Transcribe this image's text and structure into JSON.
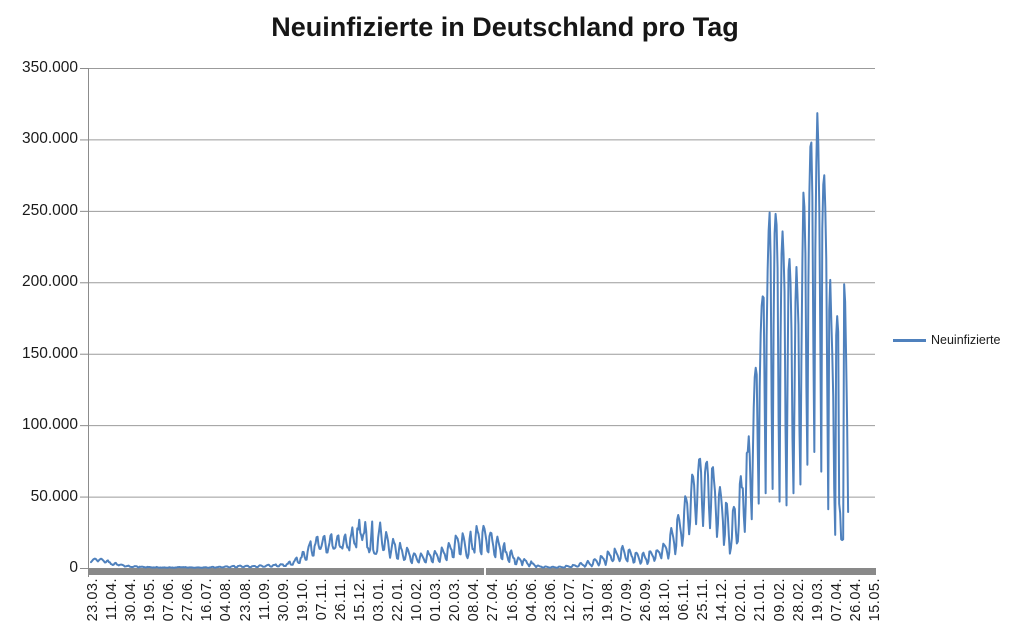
{
  "title": "Neuinfizierte in Deutschland pro Tag",
  "legend": {
    "label": "Neuinfizierte"
  },
  "colors": {
    "series": "#4F81BD",
    "gridline": "#9B9B9B",
    "axis_line": "#8C8C8C",
    "axis_bar": "#898989",
    "label_text": "#1A1A1A",
    "title_text": "#161616",
    "background": "#FFFFFF"
  },
  "chart_data": {
    "type": "line",
    "title": "Neuinfizierte in Deutschland pro Tag",
    "grid": "horizontal",
    "legend_position": "right",
    "ylim": [
      0,
      350000
    ],
    "y_tick_step": 50000,
    "y_tick_labels": [
      "350.000",
      "300.000",
      "250.000",
      "200.000",
      "150.000",
      "100.000",
      "50.000",
      "0"
    ],
    "x_tick_labels": [
      "23.03.",
      "11.04.",
      "30.04.",
      "19.05.",
      "07.06.",
      "27.06.",
      "16.07.",
      "04.08.",
      "23.08.",
      "11.09.",
      "30.09.",
      "19.10.",
      "07.11.",
      "26.11.",
      "15.12.",
      "03.01.",
      "22.01.",
      "10.02.",
      "01.03.",
      "20.03.",
      "08.04.",
      "27.04.",
      "16.05.",
      "04.06.",
      "23.06.",
      "12.07.",
      "31.07.",
      "19.08.",
      "07.09.",
      "26.09.",
      "18.10.",
      "06.11.",
      "25.11.",
      "14.12.",
      "02.01.",
      "21.01.",
      "09.02.",
      "28.02.",
      "19.03.",
      "07.04.",
      "26.04.",
      "15.05."
    ],
    "series": [
      {
        "name": "Neuinfizierte",
        "frequency": "daily",
        "start_date": "23.03.2020",
        "end_date": "24.04.2022",
        "values": [
          4100,
          4900,
          5800,
          6300,
          6600,
          6200,
          5300,
          4615,
          5453,
          6064,
          6500,
          6174,
          5453,
          4751,
          3834,
          4003,
          4974,
          5323,
          4133,
          3990,
          2821,
          2537,
          2082,
          2486,
          3380,
          3609,
          2458,
          2203,
          1775,
          2237,
          2352,
          2337,
          2055,
          1737,
          1018,
          1144,
          1304,
          1478,
          1639,
          945,
          793,
          679,
          685,
          947,
          1284,
          1209,
          1251,
          667,
          357,
          933,
          798,
          933,
          913,
          620,
          583,
          342,
          513,
          797,
          639,
          741,
          460,
          431,
          289,
          432,
          362,
          353,
          741,
          507,
          252,
          286,
          333,
          222,
          343,
          394,
          407,
          301,
          247,
          214,
          350,
          555,
          348,
          258,
          348,
          192,
          192,
          378,
          345,
          580,
          601,
          687,
          537,
          538,
          503,
          630,
          477,
          687,
          422,
          256,
          262,
          466,
          447,
          451,
          340,
          239,
          219,
          219,
          390,
          397,
          442,
          395,
          250,
          159,
          159,
          412,
          444,
          534,
          529,
          240,
          202,
          249,
          454,
          569,
          815,
          781,
          305,
          240,
          340,
          633,
          684,
          870,
          902,
          541,
          384,
          509,
          741,
          1045,
          1147,
          1122,
          748,
          555,
          436,
          966,
          1226,
          1445,
          1449,
          625,
          561,
          561,
          1390,
          1510,
          1707,
          1427,
          782,
          785,
          711,
          1278,
          1507,
          1571,
          1453,
          818,
          610,
          610,
          1218,
          1311,
          1406,
          1378,
          799,
          675,
          675,
          1499,
          1892,
          1790,
          1484,
          948,
          920,
          927,
          1407,
          1901,
          2194,
          2297,
          1345,
          922,
          922,
          1821,
          2143,
          2153,
          2507,
          1411,
          1111,
          1111,
          2089,
          2673,
          2503,
          2563,
          1450,
          1382,
          1382,
          2639,
          2828,
          4058,
          4516,
          2467,
          2279,
          2279,
          4122,
          5132,
          6638,
          7334,
          4325,
          3483,
          3483,
          6868,
          7595,
          11287,
          11242,
          7830,
          5732,
          5732,
          11409,
          14964,
          16774,
          18681,
          12097,
          8685,
          8685,
          15352,
          17214,
          21506,
          21866,
          16017,
          13363,
          13363,
          15332,
          18487,
          21866,
          22461,
          16947,
          10824,
          10824,
          14419,
          17561,
          22609,
          23648,
          15741,
          13554,
          13554,
          14361,
          18633,
          22268,
          22806,
          15871,
          14611,
          14611,
          13604,
          17270,
          22046,
          23449,
          17767,
          14355,
          14355,
          12332,
          20815,
          23679,
          28438,
          21816,
          17272,
          16362,
          14432,
          27728,
          26923,
          33777,
          24740,
          22771,
          19528,
          23318,
          24740,
          32195,
          25533,
          14455,
          13755,
          10976,
          12892,
          22459,
          32552,
          12690,
          10315,
          9847,
          9847,
          11897,
          21237,
          26391,
          31849,
          24694,
          16946,
          12497,
          12802,
          19600,
          25164,
          22368,
          18678,
          12257,
          7141,
          11369,
          15974,
          20398,
          17862,
          16417,
          11192,
          6729,
          6408,
          13202,
          17553,
          14022,
          12321,
          8616,
          5608,
          6114,
          9705,
          14211,
          12908,
          10485,
          8305,
          4535,
          3379,
          8072,
          10237,
          9860,
          8354,
          6114,
          4426,
          3856,
          7556,
          10207,
          9113,
          7676,
          6235,
          4369,
          3883,
          8007,
          11869,
          9997,
          9164,
          7890,
          4732,
          3943,
          9019,
          11912,
          10580,
          9557,
          7745,
          5011,
          4252,
          9146,
          14356,
          12834,
          10790,
          9781,
          6604,
          5480,
          13435,
          17504,
          16033,
          13733,
          12674,
          7709,
          7485,
          15813,
          22657,
          21573,
          20472,
          17176,
          9872,
          9549,
          17051,
          24300,
          21888,
          18129,
          13245,
          8497,
          6885,
          9677,
          20407,
          25464,
          18129,
          13245,
          13245,
          10810,
          21693,
          29426,
          25831,
          23804,
          19185,
          11437,
          9609,
          24884,
          29518,
          27543,
          23392,
          18773,
          11907,
          10976,
          22231,
          24736,
          24329,
          18935,
          14941,
          9160,
          7534,
          18034,
          21953,
          18485,
          15685,
          12656,
          6922,
          6125,
          14909,
          17419,
          11336,
          11040,
          8500,
          5412,
          4209,
          11040,
          12298,
          9354,
          7082,
          6714,
          2682,
          2626,
          5426,
          7380,
          6714,
          5827,
          4640,
          1978,
          4917,
          6261,
          5426,
          4917,
          3254,
          2440,
          1117,
          2440,
          4640,
          3254,
          3187,
          2294,
          1489,
          549,
          1455,
          1785,
          1330,
          1076,
          949,
          538,
          346,
          455,
          1016,
          1008,
          805,
          592,
          358,
          219,
          404,
          808,
          892,
          649,
          494,
          305,
          212,
          440,
          985,
          970,
          745,
          594,
          365,
          324,
          546,
          1548,
          1456,
          1292,
          952,
          745,
          546,
          958,
          2203,
          1890,
          1918,
          1387,
          1016,
          958,
          1545,
          3142,
          3539,
          2768,
          2097,
          1808,
          847,
          1766,
          3571,
          4996,
          3833,
          2708,
          2126,
          1183,
          2480,
          5638,
          6211,
          5578,
          4728,
          3127,
          1765,
          3447,
          8400,
          8092,
          7050,
          6325,
          4559,
          2126,
          5747,
          11561,
          10835,
          9280,
          8416,
          5750,
          4749,
          5750,
          13531,
          12029,
          10303,
          8901,
          6673,
          4774,
          6726,
          13565,
          15431,
          12969,
          10453,
          7211,
          5511,
          4664,
          12455,
          12925,
          11022,
          8523,
          7337,
          3736,
          4171,
          10454,
          10696,
          9727,
          7774,
          5511,
          3022,
          4171,
          9727,
          10696,
          8523,
          6856,
          5750,
          2828,
          4464,
          11547,
          11644,
          10429,
          8854,
          7612,
          4971,
          6771,
          12188,
          12382,
          11518,
          10949,
          8682,
          6771,
          12097,
          17015,
          16077,
          15145,
          13732,
          10473,
          6573,
          10813,
          23212,
          28037,
          24668,
          21543,
          16887,
          9658,
          15513,
          33949,
          37120,
          34002,
          28540,
          23543,
          15513,
          21832,
          39676,
          50196,
          48640,
          45081,
          33498,
          23607,
          32048,
          52826,
          65371,
          63924,
          57981,
          42727,
          30643,
          45326,
          66884,
          75961,
          76414,
          67125,
          44401,
          29364,
          45753,
          67186,
          73209,
          74352,
          64510,
          42055,
          27836,
          43099,
          69601,
          70611,
          61288,
          53697,
          38095,
          21743,
          30823,
          51301,
          56677,
          50968,
          42813,
          32646,
          16086,
          23428,
          45659,
          44927,
          35431,
          22214,
          10100,
          13908,
          21080,
          40043,
          42770,
          41240,
          26392,
          17180,
          18518,
          30561,
          58912,
          64340,
          56335,
          55889,
          36552,
          25255,
          45690,
          80430,
          81417,
          92223,
          78022,
          52504,
          34145,
          74405,
          112323,
          133536,
          140160,
          135461,
          85440,
          45090,
          126955,
          164000,
          183531,
          190148,
          189166,
          118970,
          52318,
          162613,
          208498,
          236120,
          248838,
          217815,
          113173,
          55267,
          169571,
          234250,
          247862,
          240172,
          209789,
          105160,
          46465,
          159217,
          219972,
          235626,
          220048,
          193747,
          96889,
          43867,
          125902,
          208354,
          216322,
          200673,
          165833,
          90889,
          52349,
          115842,
          186406,
          210743,
          192210,
          170312,
          98032,
          58428,
          146607,
          215854,
          262752,
          252836,
          220048,
          126607,
          72314,
          198888,
          262593,
          294931,
          297845,
          260239,
          156303,
          81224,
          222080,
          283671,
          318387,
          296498,
          252026,
          161287,
          67501,
          237352,
          268477,
          274901,
          252530,
          216322,
          126613,
          41129,
          180397,
          201729,
          175263,
          150675,
          120298,
          55471,
          23209,
          162790,
          176303,
          165368,
          45033,
          38452,
          20084,
          19572,
          20084,
          198583,
          186325,
          146313,
          101610,
          39179
        ]
      }
    ]
  }
}
